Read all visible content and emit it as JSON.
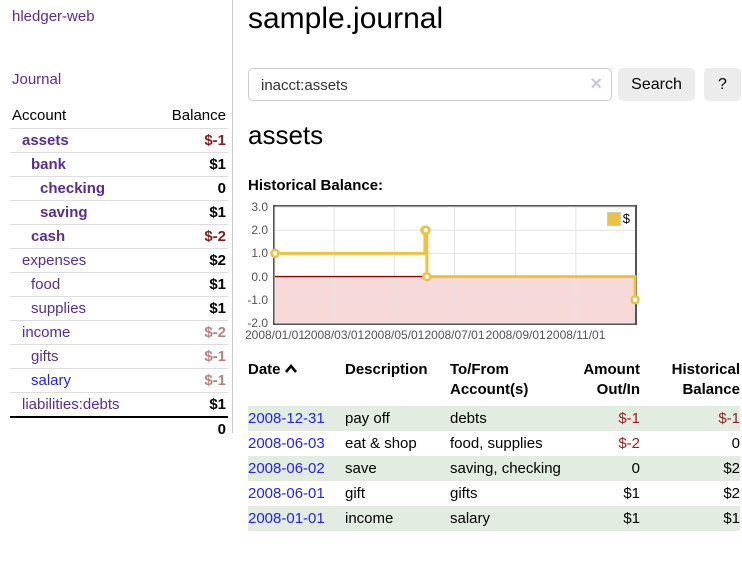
{
  "sidebar": {
    "app_title": "hledger-web",
    "nav": {
      "journal": "Journal"
    },
    "accounts_table": {
      "headers": {
        "account": "Account",
        "balance": "Balance"
      },
      "rows": [
        {
          "label": "assets",
          "indent": 0,
          "bold": true,
          "link_color": "purple",
          "balance": "$-1",
          "balance_style": "negs"
        },
        {
          "label": "bank",
          "indent": 1,
          "bold": true,
          "link_color": "purple",
          "balance": "$1",
          "balance_style": "pos"
        },
        {
          "label": "checking",
          "indent": 2,
          "bold": true,
          "link_color": "purple",
          "balance": "0",
          "balance_style": "pos"
        },
        {
          "label": "saving",
          "indent": 2,
          "bold": true,
          "link_color": "purple",
          "balance": "$1",
          "balance_style": "pos"
        },
        {
          "label": "cash",
          "indent": 1,
          "bold": true,
          "link_color": "purple",
          "balance": "$-2",
          "balance_style": "negs"
        },
        {
          "label": "expenses",
          "indent": 0,
          "bold": false,
          "link_color": "purple",
          "balance": "$2",
          "balance_style": "pos"
        },
        {
          "label": "food",
          "indent": 1,
          "bold": false,
          "link_color": "purple",
          "balance": "$1",
          "balance_style": "pos"
        },
        {
          "label": "supplies",
          "indent": 1,
          "bold": false,
          "link_color": "purple",
          "balance": "$1",
          "balance_style": "pos"
        },
        {
          "label": "income",
          "indent": 0,
          "bold": false,
          "link_color": "purple",
          "balance": "$-2",
          "balance_style": "negw"
        },
        {
          "label": "gifts",
          "indent": 1,
          "bold": false,
          "link_color": "purple",
          "balance": "$-1",
          "balance_style": "negw"
        },
        {
          "label": "salary",
          "indent": 1,
          "bold": false,
          "link_color": "blue",
          "balance": "$-1",
          "balance_style": "negw"
        },
        {
          "label": "liabilities:debts",
          "indent": 0,
          "bold": false,
          "link_color": "purple",
          "balance": "$1",
          "balance_style": "pos"
        }
      ],
      "total": "0"
    }
  },
  "main": {
    "title": "sample.journal",
    "search": {
      "value": "inacct:assets",
      "clear_icon": "×",
      "button_label": "Search",
      "help_label": "?"
    },
    "account_heading": "assets",
    "chart_label": "Historical Balance:",
    "register_table": {
      "headers": {
        "date": "Date",
        "description": "Description",
        "tofrom_line1": "To/From",
        "tofrom_line2": "Account(s)",
        "amount_line1": "Amount",
        "amount_line2": "Out/In",
        "balance_line1": "Historical",
        "balance_line2": "Balance"
      },
      "sort_icon": "chevron-up",
      "rows": [
        {
          "date": "2008-12-31",
          "description": "pay off",
          "accounts": "debts",
          "amount": "$-1",
          "balance": "$-1"
        },
        {
          "date": "2008-06-03",
          "description": "eat & shop",
          "accounts": "food, supplies",
          "amount": "$-2",
          "balance": "0"
        },
        {
          "date": "2008-06-02",
          "description": "save",
          "accounts": "saving, checking",
          "amount": "0",
          "balance": "$2"
        },
        {
          "date": "2008-06-01",
          "description": "gift",
          "accounts": "gifts",
          "amount": "$1",
          "balance": "$2"
        },
        {
          "date": "2008-01-01",
          "description": "income",
          "accounts": "salary",
          "amount": "$1",
          "balance": "$1"
        }
      ]
    }
  },
  "colors": {
    "link_purple": "#5b2d91",
    "link_blue": "#2222ee",
    "negative_strong": "#8b1a1a",
    "negative_soft": "#bf7f7f",
    "register_negative": "#9e1c1c",
    "row_green": "#e2ece0",
    "button_gray": "#ececec",
    "chart_line_yellow": "#edc240",
    "chart_negative_fill": "#f8d9d9",
    "chart_zero_line": "#8b0000",
    "chart_border": "#545454",
    "chart_grid": "#e3e3e3"
  },
  "chart_data": {
    "type": "line",
    "title": "Historical Balance:",
    "step": true,
    "xlim_days": [
      0,
      365
    ],
    "ylim": [
      -2,
      3
    ],
    "grid": true,
    "legend_position": "top-right",
    "legend_label": "$",
    "y_ticks": [
      3.0,
      2.0,
      1.0,
      0.0,
      -1.0,
      -2.0
    ],
    "x_ticks": [
      {
        "label": "2008/01/01",
        "day": 0
      },
      {
        "label": "2008/03/01",
        "day": 60
      },
      {
        "label": "2008/05/01",
        "day": 121
      },
      {
        "label": "2008/07/01",
        "day": 182
      },
      {
        "label": "2008/09/01",
        "day": 244
      },
      {
        "label": "2008/11/01",
        "day": 305
      }
    ],
    "series": [
      {
        "name": "$",
        "color": "#edc240",
        "points": [
          {
            "date": "2008-01-01",
            "day": 0,
            "value": 1
          },
          {
            "date": "2008-06-01",
            "day": 152,
            "value": 2
          },
          {
            "date": "2008-06-02",
            "day": 153,
            "value": 2
          },
          {
            "date": "2008-06-03",
            "day": 154,
            "value": 0
          },
          {
            "date": "2008-12-31",
            "day": 365,
            "value": -1
          }
        ]
      }
    ],
    "negative_region_color": "#f8d9d9",
    "zero_line_color": "#8b0000"
  }
}
